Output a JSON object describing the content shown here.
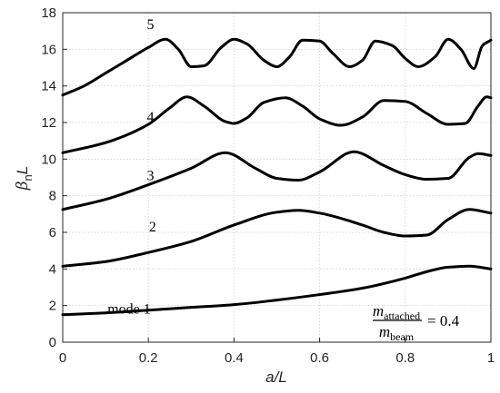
{
  "chart_data": {
    "type": "line",
    "xlabel": "a/L",
    "ylabel_base": "β",
    "ylabel_sub": "n",
    "ylabel_tail": "L",
    "xlim": [
      0,
      1
    ],
    "ylim": [
      0,
      18
    ],
    "x_ticks": [
      0,
      0.2,
      0.4,
      0.6,
      0.8,
      1
    ],
    "x_tick_labels": [
      "0",
      "0.2",
      "0.4",
      "0.6",
      "0.8",
      "1"
    ],
    "y_ticks": [
      0,
      2,
      4,
      6,
      8,
      10,
      12,
      14,
      16,
      18
    ],
    "y_tick_labels": [
      "0",
      "2",
      "4",
      "6",
      "8",
      "10",
      "12",
      "14",
      "16",
      "18"
    ],
    "grid": true,
    "annotation": {
      "numerator": "m",
      "numerator_sub": "attached",
      "denominator": "m",
      "denominator_sub": "beam",
      "value_text": "= 0.4"
    },
    "series": [
      {
        "label": "mode 1",
        "label_at": [
          0.155,
          1.55
        ],
        "x": [
          0,
          0.1,
          0.2,
          0.3,
          0.4,
          0.5,
          0.6,
          0.7,
          0.8,
          0.85,
          0.9,
          0.95,
          1.0
        ],
        "y": [
          1.5,
          1.6,
          1.75,
          1.9,
          2.05,
          2.3,
          2.6,
          2.95,
          3.5,
          3.85,
          4.1,
          4.15,
          4.0
        ]
      },
      {
        "label": "2",
        "label_at": [
          0.21,
          6.05
        ],
        "x": [
          0,
          0.1,
          0.2,
          0.3,
          0.4,
          0.5,
          0.55,
          0.6,
          0.7,
          0.75,
          0.8,
          0.85,
          0.9,
          0.95,
          1.0
        ],
        "y": [
          4.15,
          4.4,
          4.9,
          5.5,
          6.4,
          7.1,
          7.2,
          7.05,
          6.4,
          6.0,
          5.8,
          5.85,
          6.7,
          7.25,
          7.05
        ]
      },
      {
        "label": "3",
        "label_at": [
          0.205,
          8.85
        ],
        "x": [
          0,
          0.1,
          0.2,
          0.3,
          0.38,
          0.45,
          0.5,
          0.55,
          0.6,
          0.68,
          0.75,
          0.8,
          0.85,
          0.9,
          0.95,
          0.97,
          1.0
        ],
        "y": [
          7.25,
          7.8,
          8.6,
          9.5,
          10.35,
          9.5,
          8.95,
          8.85,
          9.3,
          10.4,
          9.65,
          9.15,
          8.9,
          8.95,
          10.1,
          10.3,
          10.2
        ]
      },
      {
        "label": "4",
        "label_at": [
          0.205,
          12.05
        ],
        "x": [
          0,
          0.1,
          0.2,
          0.25,
          0.29,
          0.33,
          0.38,
          0.4,
          0.43,
          0.47,
          0.52,
          0.56,
          0.6,
          0.65,
          0.7,
          0.75,
          0.8,
          0.85,
          0.9,
          0.94,
          0.97,
          0.99,
          1.0
        ],
        "y": [
          10.35,
          10.9,
          11.9,
          12.8,
          13.4,
          12.9,
          12.05,
          11.95,
          12.25,
          13.1,
          13.35,
          12.9,
          12.2,
          11.85,
          12.3,
          13.2,
          13.15,
          12.5,
          11.9,
          11.95,
          12.9,
          13.4,
          13.35
        ]
      },
      {
        "label": "5",
        "label_at": [
          0.205,
          17.1
        ],
        "x": [
          0,
          0.05,
          0.1,
          0.15,
          0.2,
          0.24,
          0.27,
          0.3,
          0.33,
          0.37,
          0.4,
          0.43,
          0.47,
          0.5,
          0.53,
          0.56,
          0.6,
          0.63,
          0.67,
          0.7,
          0.73,
          0.77,
          0.8,
          0.83,
          0.87,
          0.9,
          0.93,
          0.96,
          0.98,
          1.0
        ],
        "y": [
          13.5,
          14.0,
          14.7,
          15.4,
          16.1,
          16.55,
          16.0,
          15.05,
          15.1,
          16.1,
          16.55,
          16.3,
          15.4,
          15.05,
          15.6,
          16.5,
          16.45,
          15.8,
          15.05,
          15.4,
          16.45,
          16.2,
          15.5,
          15.05,
          15.6,
          16.55,
          16.0,
          14.95,
          16.2,
          16.5
        ]
      }
    ]
  }
}
